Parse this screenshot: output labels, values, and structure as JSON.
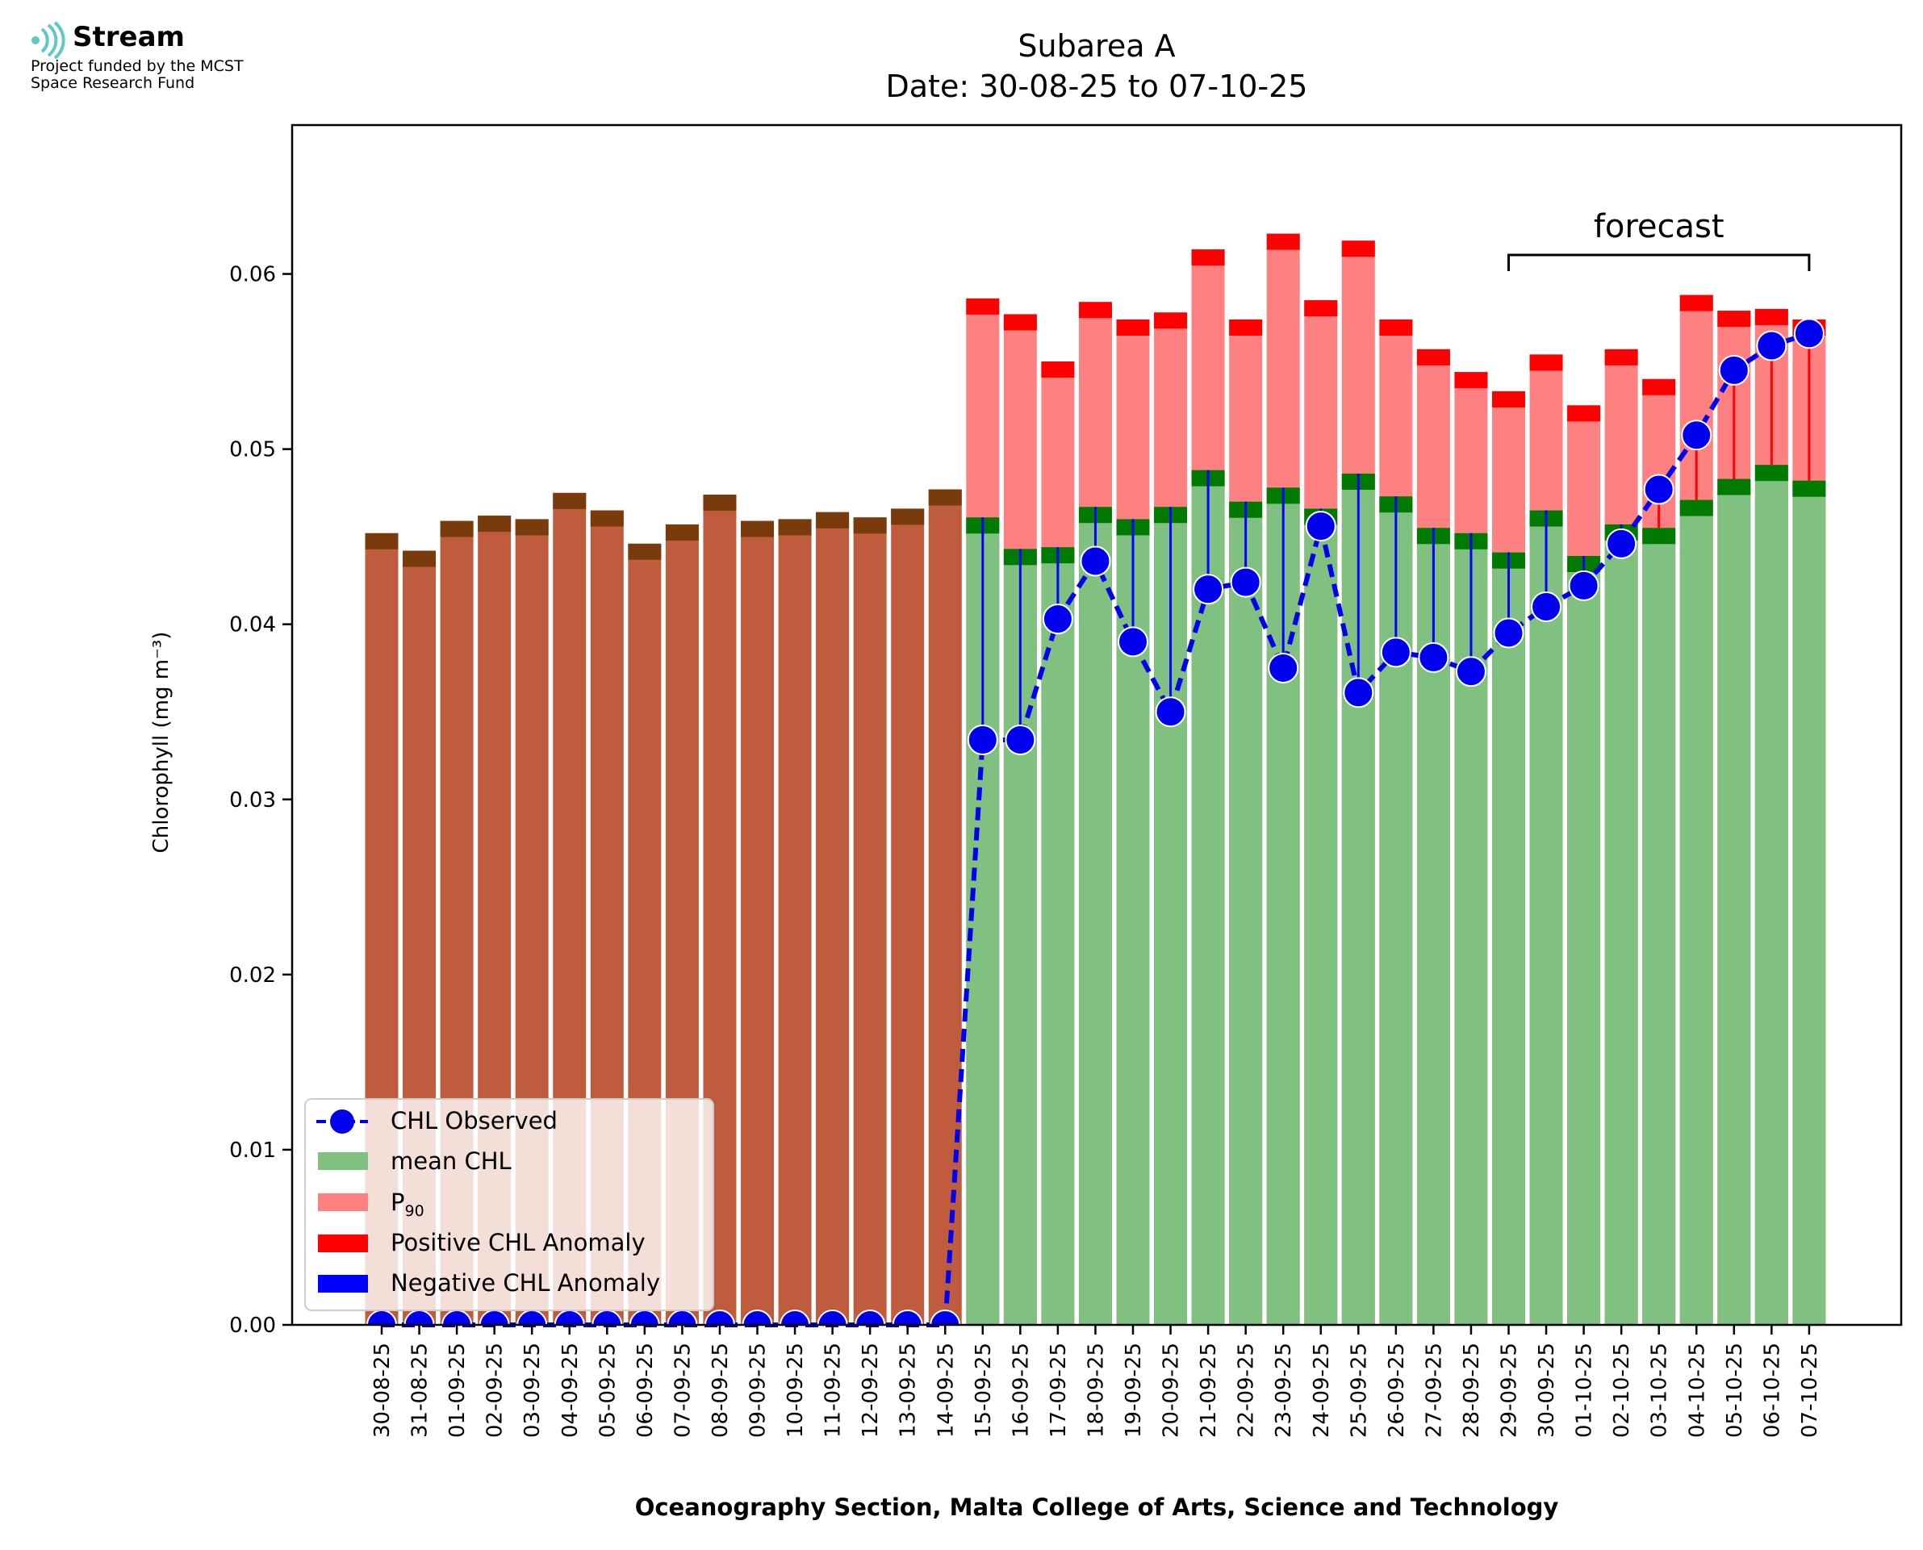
{
  "logo": {
    "brand": "Stream",
    "funding_line1": "Project funded by the MCST",
    "funding_line2": "Space Research Fund"
  },
  "chart_data": {
    "type": "bar",
    "title": "Subarea A",
    "subtitle": "Date: 30-08-25 to 07-10-25",
    "xlabel": "Oceanography Section, Malta College of Arts, Science and Technology",
    "ylabel": "Chlorophyll (mg m⁻³)",
    "ylim": [
      0,
      0.0685
    ],
    "yticks": [
      0.0,
      0.01,
      0.02,
      0.03,
      0.04,
      0.05,
      0.06
    ],
    "ytick_labels": [
      "0.00",
      "0.01",
      "0.02",
      "0.03",
      "0.04",
      "0.05",
      "0.06"
    ],
    "annotation": "forecast",
    "forecast_range": [
      "29-09-25",
      "07-10-25"
    ],
    "categories": [
      "30-08-25",
      "31-08-25",
      "01-09-25",
      "02-09-25",
      "03-09-25",
      "04-09-25",
      "05-09-25",
      "06-09-25",
      "07-09-25",
      "08-09-25",
      "09-09-25",
      "10-09-25",
      "11-09-25",
      "12-09-25",
      "13-09-25",
      "14-09-25",
      "15-09-25",
      "16-09-25",
      "17-09-25",
      "18-09-25",
      "19-09-25",
      "20-09-25",
      "21-09-25",
      "22-09-25",
      "23-09-25",
      "24-09-25",
      "25-09-25",
      "26-09-25",
      "27-09-25",
      "28-09-25",
      "29-09-25",
      "30-09-25",
      "01-10-25",
      "02-10-25",
      "03-10-25",
      "04-10-25",
      "05-10-25",
      "06-10-25",
      "07-10-25"
    ],
    "historical_count": 16,
    "series": [
      {
        "name": "mean CHL",
        "values": [
          0.0452,
          0.0442,
          0.0459,
          0.0462,
          0.046,
          0.0475,
          0.0465,
          0.0446,
          0.0457,
          0.0474,
          0.0459,
          0.046,
          0.0464,
          0.0461,
          0.0466,
          0.0477,
          0.0461,
          0.0443,
          0.0444,
          0.0467,
          0.046,
          0.0467,
          0.0488,
          0.047,
          0.0478,
          0.0466,
          0.0486,
          0.0473,
          0.0455,
          0.0452,
          0.0441,
          0.0465,
          0.0439,
          0.0457,
          0.0455,
          0.0471,
          0.0483,
          0.0491,
          0.0482
        ]
      },
      {
        "name": "P90",
        "values": [
          null,
          null,
          null,
          null,
          null,
          null,
          null,
          null,
          null,
          null,
          null,
          null,
          null,
          null,
          null,
          null,
          0.0586,
          0.0577,
          0.055,
          0.0584,
          0.0574,
          0.0578,
          0.0614,
          0.0574,
          0.0623,
          0.0585,
          0.0619,
          0.0574,
          0.0557,
          0.0544,
          0.0533,
          0.0554,
          0.0525,
          0.0557,
          0.054,
          0.0588,
          0.0579,
          0.058,
          0.0574
        ]
      },
      {
        "name": "CHL Observed",
        "values": [
          0,
          0,
          0,
          0,
          0,
          0,
          0,
          0,
          0,
          0,
          0,
          0,
          0,
          0,
          0,
          0,
          0.0334,
          0.0334,
          0.0403,
          0.0436,
          0.039,
          0.035,
          0.042,
          0.0424,
          0.0375,
          0.0456,
          0.0361,
          0.0384,
          0.0381,
          0.0373,
          0.0395,
          0.041,
          0.0422,
          0.0446,
          0.0477,
          0.0508,
          0.0545,
          0.0559,
          0.0566
        ]
      }
    ],
    "legend": {
      "position": "lower-left",
      "entries": [
        "CHL Observed",
        "mean CHL",
        "P",
        "Positive CHL Anomaly",
        "Negative CHL Anomaly"
      ],
      "p90_subscript": "90"
    },
    "colors": {
      "historical_bar": "#c05c3e",
      "historical_cap": "#7a3b0c",
      "mean_bar": "#80c080",
      "mean_cap": "#007a00",
      "p90_bar": "#ff8080",
      "p90_cap": "#ff0000",
      "observed": "#0000ee",
      "positive_anomaly": "#ff0000",
      "negative_anomaly": "#0000ff"
    }
  }
}
